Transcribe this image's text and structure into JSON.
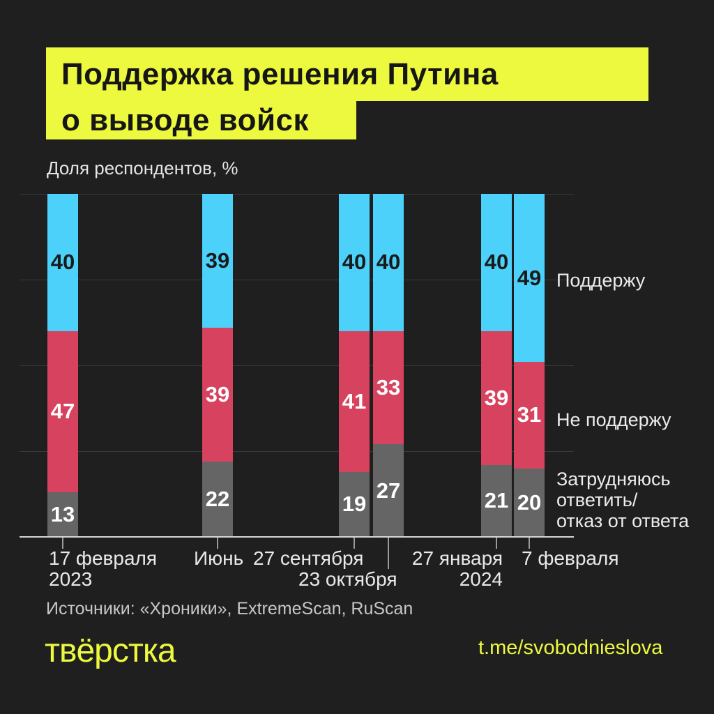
{
  "title": {
    "line1": "Поддержка решения Путина",
    "line2": "о выводе войск"
  },
  "ylabel": "Доля респондентов, %",
  "legend": [
    {
      "name": "Поддержу",
      "lines": [
        "Поддержу"
      ],
      "color": "#4cd1fa"
    },
    {
      "name": "Не поддержу",
      "lines": [
        "Не поддержу"
      ],
      "color": "#d7425f"
    },
    {
      "name": "Затрудняюсь ответить/отказ от ответа",
      "lines": [
        "Затрудняюсь",
        "ответить/",
        "отказ от ответа"
      ],
      "color": "#656565"
    }
  ],
  "chart_data": {
    "type": "bar",
    "stacked": true,
    "unit": "%",
    "title": "Поддержка решения Путина о выводе войск",
    "ylabel": "Доля респондентов, %",
    "ylim": [
      0,
      100
    ],
    "grid": true,
    "gridline_values": [
      100,
      75,
      50,
      25
    ],
    "legend_position": "right",
    "categories": [
      "17 февраля 2023",
      "Июнь",
      "27 сентября",
      "23 октября",
      "27 января 2024",
      "7 февраля"
    ],
    "x_tick_lines": [
      [
        "17 февраля",
        "2023"
      ],
      [
        "Июнь"
      ],
      [
        "27 сентября"
      ],
      [
        "23 октября"
      ],
      [
        "27 января",
        "2024"
      ],
      [
        "7 февраля"
      ]
    ],
    "series": [
      {
        "name": "Поддержу",
        "color": "#4cd1fa",
        "label_color": "#1a1a1a",
        "values": [
          40,
          39,
          40,
          40,
          40,
          49
        ]
      },
      {
        "name": "Не поддержу",
        "color": "#d7425f",
        "label_color": "#ffffff",
        "values": [
          47,
          39,
          41,
          33,
          39,
          31
        ]
      },
      {
        "name": "Затрудняюсь ответить/отказ от ответа",
        "color": "#656565",
        "label_color": "#ffffff",
        "values": [
          13,
          22,
          19,
          27,
          21,
          20
        ]
      }
    ]
  },
  "footer": {
    "sources": "Источники: «Хроники», ExtremeScan, RuScan",
    "logo": "твёрстка",
    "link": "t.me/svobodnieslova"
  },
  "colors": {
    "background": "#1f1f1f",
    "accent_yellow": "#edf93e",
    "support": "#4cd1fa",
    "oppose": "#d7425f",
    "undecided": "#656565"
  }
}
